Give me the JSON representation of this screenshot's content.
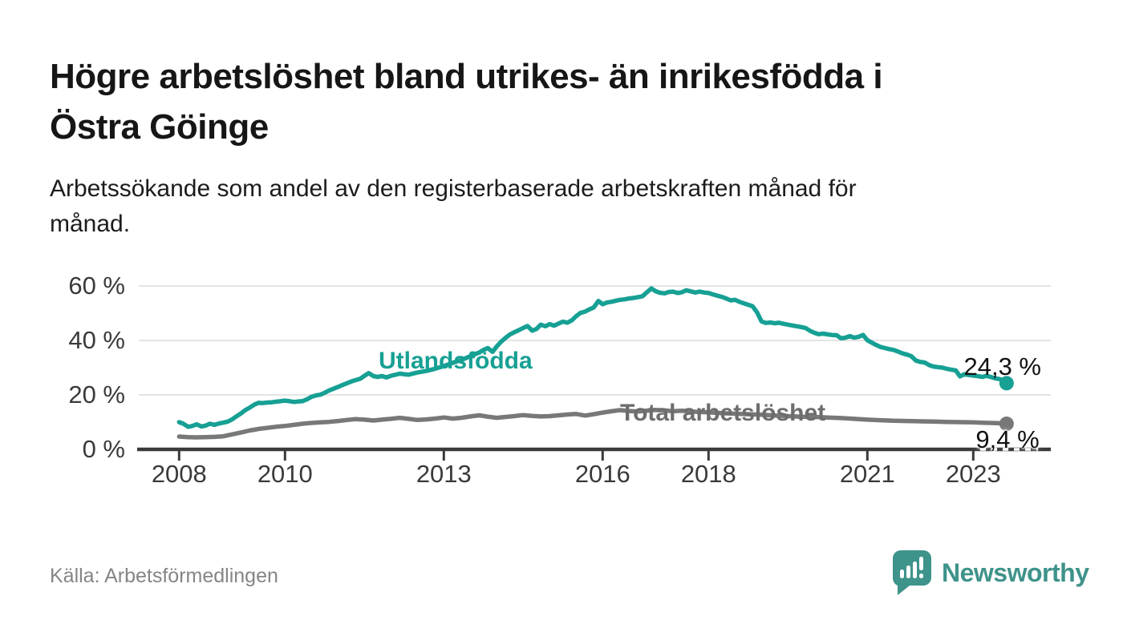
{
  "header": {
    "title_line1": "Högre arbetslöshet bland utrikes- än inrikesfödda i",
    "title_line2": "Östra Göinge",
    "subtitle_line1": "Arbetssökande som andel av den registerbaserade arbetskraften månad för",
    "subtitle_line2": "månad."
  },
  "footer": {
    "source": "Källa: Arbetsförmedlingen",
    "logo_text": "Newsworthy"
  },
  "colors": {
    "accent_teal": "#17a094",
    "line_gray": "#787878",
    "logo_teal": "#3e938a",
    "axis": "#3a3a3a",
    "gridline": "#dcdcdc",
    "text_dark": "#161616",
    "text_muted": "#858585"
  },
  "chart_data": {
    "type": "line",
    "title": "Högre arbetslöshet bland utrikes- än inrikesfödda i Östra Göinge",
    "subtitle": "Arbetssökande som andel av den registerbaserade arbetskraften månad för månad.",
    "xlabel": "",
    "ylabel": "",
    "grid": true,
    "legend_position": "inline-labels",
    "x_domain": [
      2007.24,
      2024.47
    ],
    "y_domain": [
      0,
      65
    ],
    "x_ticks": [
      {
        "value": 2008,
        "label": "2008"
      },
      {
        "value": 2010,
        "label": "2010"
      },
      {
        "value": 2013,
        "label": "2013"
      },
      {
        "value": 2016,
        "label": "2016"
      },
      {
        "value": 2018,
        "label": "2018"
      },
      {
        "value": 2021,
        "label": "2021"
      },
      {
        "value": 2023,
        "label": "2023"
      }
    ],
    "y_ticks": [
      {
        "value": 0,
        "label": "0 %"
      },
      {
        "value": 20,
        "label": "20 %"
      },
      {
        "value": 40,
        "label": "40 %"
      },
      {
        "value": 60,
        "label": "60 %"
      }
    ],
    "series": [
      {
        "name": "Utlandsfödda",
        "color": "#17a094",
        "end_label": "24,3 %",
        "end_value": 24.3,
        "points": [
          [
            2008.0,
            10.0
          ],
          [
            2008.08,
            9.4
          ],
          [
            2008.17,
            8.3
          ],
          [
            2008.25,
            8.6
          ],
          [
            2008.33,
            9.2
          ],
          [
            2008.42,
            8.4
          ],
          [
            2008.5,
            8.7
          ],
          [
            2008.58,
            9.4
          ],
          [
            2008.67,
            9.0
          ],
          [
            2008.75,
            9.5
          ],
          [
            2008.83,
            9.8
          ],
          [
            2008.92,
            10.2
          ],
          [
            2009.0,
            11.0
          ],
          [
            2009.08,
            12.1
          ],
          [
            2009.17,
            13.2
          ],
          [
            2009.25,
            14.4
          ],
          [
            2009.33,
            15.3
          ],
          [
            2009.42,
            16.4
          ],
          [
            2009.5,
            17.1
          ],
          [
            2009.58,
            17.0
          ],
          [
            2009.67,
            17.2
          ],
          [
            2009.75,
            17.3
          ],
          [
            2009.83,
            17.5
          ],
          [
            2009.92,
            17.7
          ],
          [
            2010.0,
            17.9
          ],
          [
            2010.08,
            17.7
          ],
          [
            2010.17,
            17.4
          ],
          [
            2010.25,
            17.6
          ],
          [
            2010.33,
            17.7
          ],
          [
            2010.42,
            18.4
          ],
          [
            2010.5,
            19.3
          ],
          [
            2010.58,
            19.8
          ],
          [
            2010.67,
            20.1
          ],
          [
            2010.75,
            20.8
          ],
          [
            2010.83,
            21.6
          ],
          [
            2010.92,
            22.3
          ],
          [
            2011.0,
            22.9
          ],
          [
            2011.08,
            23.6
          ],
          [
            2011.17,
            24.3
          ],
          [
            2011.25,
            24.9
          ],
          [
            2011.33,
            25.4
          ],
          [
            2011.42,
            25.9
          ],
          [
            2011.5,
            27.0
          ],
          [
            2011.58,
            28.0
          ],
          [
            2011.67,
            26.9
          ],
          [
            2011.75,
            26.6
          ],
          [
            2011.83,
            26.9
          ],
          [
            2011.92,
            26.4
          ],
          [
            2012.0,
            27.0
          ],
          [
            2012.17,
            27.8
          ],
          [
            2012.33,
            27.4
          ],
          [
            2012.5,
            28.2
          ],
          [
            2012.67,
            28.8
          ],
          [
            2012.83,
            29.6
          ],
          [
            2013.0,
            30.6
          ],
          [
            2013.17,
            31.8
          ],
          [
            2013.33,
            32.8
          ],
          [
            2013.5,
            34.2
          ],
          [
            2013.67,
            35.6
          ],
          [
            2013.75,
            36.5
          ],
          [
            2013.83,
            37.2
          ],
          [
            2013.92,
            35.8
          ],
          [
            2014.0,
            37.8
          ],
          [
            2014.08,
            39.5
          ],
          [
            2014.17,
            41.0
          ],
          [
            2014.25,
            42.2
          ],
          [
            2014.33,
            43.0
          ],
          [
            2014.42,
            43.8
          ],
          [
            2014.5,
            44.6
          ],
          [
            2014.58,
            45.3
          ],
          [
            2014.67,
            43.6
          ],
          [
            2014.75,
            44.2
          ],
          [
            2014.83,
            45.8
          ],
          [
            2014.92,
            45.2
          ],
          [
            2015.0,
            46.0
          ],
          [
            2015.08,
            45.4
          ],
          [
            2015.17,
            46.2
          ],
          [
            2015.25,
            46.9
          ],
          [
            2015.33,
            46.5
          ],
          [
            2015.42,
            47.4
          ],
          [
            2015.5,
            48.9
          ],
          [
            2015.58,
            50.1
          ],
          [
            2015.67,
            50.6
          ],
          [
            2015.75,
            51.4
          ],
          [
            2015.83,
            52.1
          ],
          [
            2015.92,
            54.5
          ],
          [
            2016.0,
            53.3
          ],
          [
            2016.08,
            53.9
          ],
          [
            2016.17,
            54.2
          ],
          [
            2016.25,
            54.6
          ],
          [
            2016.33,
            54.9
          ],
          [
            2016.42,
            55.1
          ],
          [
            2016.5,
            55.4
          ],
          [
            2016.58,
            55.6
          ],
          [
            2016.67,
            55.9
          ],
          [
            2016.75,
            56.2
          ],
          [
            2016.83,
            57.6
          ],
          [
            2016.92,
            59.1
          ],
          [
            2017.0,
            58.1
          ],
          [
            2017.08,
            57.5
          ],
          [
            2017.17,
            57.3
          ],
          [
            2017.25,
            57.8
          ],
          [
            2017.33,
            57.9
          ],
          [
            2017.42,
            57.4
          ],
          [
            2017.5,
            57.7
          ],
          [
            2017.58,
            58.4
          ],
          [
            2017.67,
            58.0
          ],
          [
            2017.75,
            57.6
          ],
          [
            2017.83,
            57.9
          ],
          [
            2017.92,
            57.6
          ],
          [
            2018.0,
            57.4
          ],
          [
            2018.08,
            56.9
          ],
          [
            2018.17,
            56.4
          ],
          [
            2018.25,
            56.0
          ],
          [
            2018.33,
            55.4
          ],
          [
            2018.42,
            54.7
          ],
          [
            2018.5,
            54.9
          ],
          [
            2018.58,
            54.2
          ],
          [
            2018.67,
            53.6
          ],
          [
            2018.75,
            53.1
          ],
          [
            2018.83,
            52.6
          ],
          [
            2018.92,
            50.2
          ],
          [
            2019.0,
            47.0
          ],
          [
            2019.08,
            46.4
          ],
          [
            2019.17,
            46.6
          ],
          [
            2019.25,
            46.3
          ],
          [
            2019.33,
            46.5
          ],
          [
            2019.42,
            46.1
          ],
          [
            2019.5,
            45.8
          ],
          [
            2019.58,
            45.5
          ],
          [
            2019.67,
            45.2
          ],
          [
            2019.75,
            44.9
          ],
          [
            2019.83,
            44.6
          ],
          [
            2019.92,
            43.5
          ],
          [
            2020.0,
            42.8
          ],
          [
            2020.08,
            42.3
          ],
          [
            2020.17,
            42.5
          ],
          [
            2020.25,
            42.2
          ],
          [
            2020.33,
            42.0
          ],
          [
            2020.42,
            41.9
          ],
          [
            2020.5,
            40.8
          ],
          [
            2020.58,
            41.0
          ],
          [
            2020.67,
            41.6
          ],
          [
            2020.75,
            41.0
          ],
          [
            2020.83,
            41.3
          ],
          [
            2020.92,
            42.0
          ],
          [
            2021.0,
            40.1
          ],
          [
            2021.08,
            39.2
          ],
          [
            2021.17,
            38.3
          ],
          [
            2021.25,
            37.6
          ],
          [
            2021.33,
            37.2
          ],
          [
            2021.42,
            36.8
          ],
          [
            2021.5,
            36.5
          ],
          [
            2021.58,
            35.9
          ],
          [
            2021.67,
            35.2
          ],
          [
            2021.75,
            34.8
          ],
          [
            2021.83,
            34.2
          ],
          [
            2021.92,
            32.6
          ],
          [
            2022.0,
            32.1
          ],
          [
            2022.08,
            31.9
          ],
          [
            2022.17,
            30.9
          ],
          [
            2022.25,
            30.4
          ],
          [
            2022.33,
            30.2
          ],
          [
            2022.42,
            30.0
          ],
          [
            2022.5,
            29.6
          ],
          [
            2022.58,
            29.3
          ],
          [
            2022.67,
            29.0
          ],
          [
            2022.75,
            26.8
          ],
          [
            2022.83,
            27.6
          ],
          [
            2022.92,
            27.3
          ],
          [
            2023.0,
            27.1
          ],
          [
            2023.08,
            26.9
          ],
          [
            2023.17,
            26.6
          ],
          [
            2023.25,
            27.0
          ],
          [
            2023.33,
            26.6
          ],
          [
            2023.42,
            26.1
          ],
          [
            2023.5,
            25.8
          ],
          [
            2023.58,
            25.2
          ],
          [
            2023.63,
            24.3
          ]
        ]
      },
      {
        "name": "Total arbetslöshet",
        "color": "#787878",
        "end_label": "9,4 %",
        "end_value": 9.4,
        "points": [
          [
            2008.0,
            4.7
          ],
          [
            2008.17,
            4.5
          ],
          [
            2008.33,
            4.4
          ],
          [
            2008.5,
            4.5
          ],
          [
            2008.67,
            4.6
          ],
          [
            2008.83,
            4.8
          ],
          [
            2009.0,
            5.5
          ],
          [
            2009.17,
            6.2
          ],
          [
            2009.33,
            6.9
          ],
          [
            2009.5,
            7.5
          ],
          [
            2009.67,
            7.9
          ],
          [
            2009.83,
            8.3
          ],
          [
            2010.0,
            8.6
          ],
          [
            2010.17,
            9.0
          ],
          [
            2010.33,
            9.4
          ],
          [
            2010.5,
            9.7
          ],
          [
            2010.67,
            9.9
          ],
          [
            2010.83,
            10.1
          ],
          [
            2011.0,
            10.4
          ],
          [
            2011.17,
            10.8
          ],
          [
            2011.33,
            11.1
          ],
          [
            2011.5,
            10.9
          ],
          [
            2011.67,
            10.6
          ],
          [
            2011.83,
            10.9
          ],
          [
            2012.0,
            11.2
          ],
          [
            2012.17,
            11.6
          ],
          [
            2012.33,
            11.2
          ],
          [
            2012.5,
            10.8
          ],
          [
            2012.67,
            11.0
          ],
          [
            2012.83,
            11.3
          ],
          [
            2013.0,
            11.7
          ],
          [
            2013.17,
            11.3
          ],
          [
            2013.33,
            11.6
          ],
          [
            2013.5,
            12.1
          ],
          [
            2013.67,
            12.5
          ],
          [
            2013.83,
            12.0
          ],
          [
            2014.0,
            11.6
          ],
          [
            2014.17,
            11.9
          ],
          [
            2014.33,
            12.2
          ],
          [
            2014.5,
            12.6
          ],
          [
            2014.67,
            12.3
          ],
          [
            2014.83,
            12.1
          ],
          [
            2015.0,
            12.2
          ],
          [
            2015.17,
            12.5
          ],
          [
            2015.33,
            12.8
          ],
          [
            2015.5,
            13.0
          ],
          [
            2015.67,
            12.4
          ],
          [
            2015.83,
            12.9
          ],
          [
            2016.0,
            13.5
          ],
          [
            2016.17,
            14.0
          ],
          [
            2016.33,
            14.4
          ],
          [
            2016.5,
            14.1
          ],
          [
            2016.67,
            13.9
          ],
          [
            2016.83,
            14.2
          ],
          [
            2017.0,
            14.5
          ],
          [
            2017.17,
            14.3
          ],
          [
            2017.33,
            14.0
          ],
          [
            2017.5,
            14.2
          ],
          [
            2017.67,
            13.9
          ],
          [
            2017.83,
            13.7
          ],
          [
            2018.0,
            13.6
          ],
          [
            2018.25,
            13.3
          ],
          [
            2018.5,
            13.1
          ],
          [
            2018.75,
            12.9
          ],
          [
            2019.0,
            12.7
          ],
          [
            2019.25,
            12.4
          ],
          [
            2019.5,
            12.2
          ],
          [
            2019.75,
            12.0
          ],
          [
            2020.0,
            11.9
          ],
          [
            2020.25,
            11.7
          ],
          [
            2020.5,
            11.5
          ],
          [
            2020.75,
            11.2
          ],
          [
            2021.0,
            10.9
          ],
          [
            2021.25,
            10.7
          ],
          [
            2021.5,
            10.5
          ],
          [
            2021.75,
            10.4
          ],
          [
            2022.0,
            10.3
          ],
          [
            2022.25,
            10.2
          ],
          [
            2022.5,
            10.1
          ],
          [
            2022.75,
            10.0
          ],
          [
            2023.0,
            9.9
          ],
          [
            2023.17,
            9.8
          ],
          [
            2023.33,
            9.7
          ],
          [
            2023.5,
            9.6
          ],
          [
            2023.63,
            9.4
          ]
        ]
      }
    ]
  }
}
